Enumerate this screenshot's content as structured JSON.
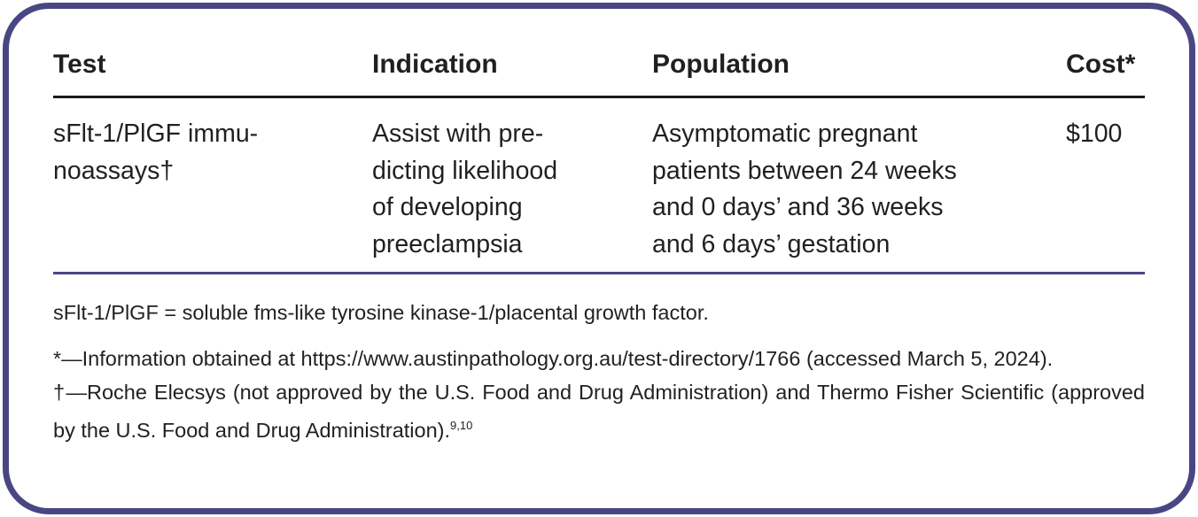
{
  "table": {
    "headers": [
      "Test",
      "Indication",
      "Population",
      "Cost*"
    ],
    "rows": [
      {
        "test": "sFlt-1/PlGF immu-\nnoassays†",
        "indication": "Assist with pre-\ndicting likelihood\nof developing\npreeclampsia",
        "population": "Asymptomatic pregnant\npatients between 24 weeks\nand 0 days’ and 36 weeks\nand 6 days’ gestation",
        "cost": "$100"
      }
    ]
  },
  "footnotes": {
    "abbreviation": "sFlt-1/PlGF = soluble fms-like tyrosine kinase-1/placental growth factor.",
    "asterisk": "*—Information obtained at https://www.austinpathology.org.au/test-directory/1766 (accessed March 5, 2024).",
    "dagger": "†—Roche Elecsys (not approved by the U.S. Food and Drug Administration) and Thermo Fisher Scientific (approved by the U.S. Food and Drug Administration).",
    "dagger_refs": "9,10"
  },
  "colors": {
    "border": "#4a4683",
    "text": "#231f20"
  }
}
